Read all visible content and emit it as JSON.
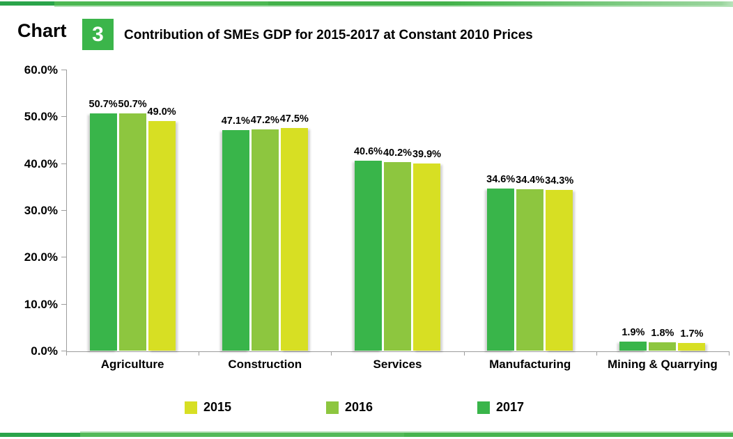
{
  "header": {
    "chart_label": "Chart",
    "chart_number": "3",
    "title": "Contribution of SMEs GDP for 2015-2017 at Constant 2010 Prices"
  },
  "chart_data": {
    "type": "bar",
    "title": "Contribution of SMEs GDP for 2015-2017 at Constant 2010 Prices",
    "categories": [
      "Agriculture",
      "Construction",
      "Services",
      "Manufacturing",
      "Mining & Quarrying"
    ],
    "series": [
      {
        "name": "2017",
        "color": "#39B54A",
        "values": [
          50.7,
          47.1,
          40.6,
          34.6,
          1.9
        ],
        "labels": [
          "50.7%",
          "47.1%",
          "40.6%",
          "34.6%",
          "1.9%"
        ]
      },
      {
        "name": "2016",
        "color": "#8DC63F",
        "values": [
          50.7,
          47.2,
          40.2,
          34.4,
          1.8
        ],
        "labels": [
          "50.7%",
          "47.2%",
          "40.2%",
          "34.4%",
          "1.8%"
        ]
      },
      {
        "name": "2015",
        "color": "#D7DF23",
        "values": [
          49.0,
          47.5,
          39.9,
          34.3,
          1.7
        ],
        "labels": [
          "49.0%",
          "47.5%",
          "39.9%",
          "34.3%",
          "1.7%"
        ]
      }
    ],
    "series_display_order_left_to_right": [
      "2017",
      "2016",
      "2015"
    ],
    "y_ticks": [
      "60.0%",
      "50.0%",
      "40.0%",
      "30.0%",
      "20.0%",
      "10.0%",
      "0.0%"
    ],
    "ylim": [
      0,
      60
    ],
    "grid": false,
    "legend_position": "bottom",
    "legend": [
      {
        "label": "2015",
        "color": "#D7DF23"
      },
      {
        "label": "2016",
        "color": "#8DC63F"
      },
      {
        "label": "2017",
        "color": "#39B54A"
      }
    ]
  },
  "colors": {
    "accent_green": "#3BB54A",
    "axis_gray": "#9C9C9C",
    "band_dark_green": "#2AA44A",
    "band_light_green": "#B5E2B7"
  }
}
